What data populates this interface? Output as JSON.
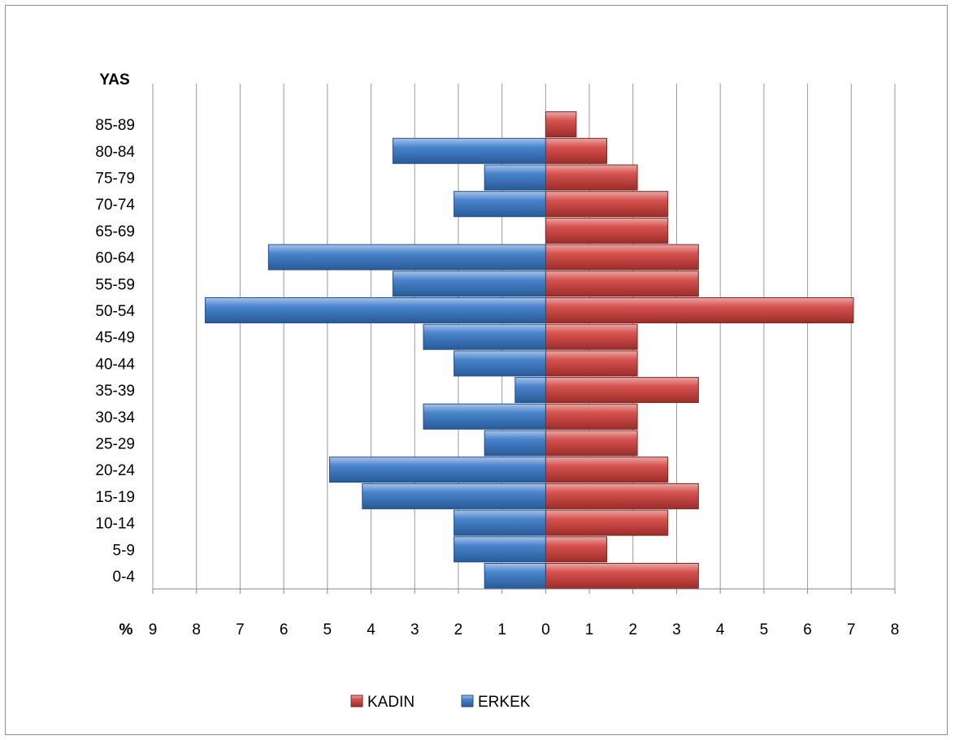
{
  "chart_data": {
    "type": "bar",
    "orientation": "horizontal",
    "subtype": "population-pyramid",
    "y_axis_title": "YAS",
    "x_axis_title": "%",
    "categories": [
      "0-4",
      "5-9",
      "10-14",
      "15-19",
      "20-24",
      "25-29",
      "30-34",
      "35-39",
      "40-44",
      "45-49",
      "50-54",
      "55-59",
      "60-64",
      "65-69",
      "70-74",
      "75-79",
      "80-84",
      "85-89"
    ],
    "series": [
      {
        "name": "KADIN",
        "color": "#c0504d",
        "side": "right",
        "values": [
          3.5,
          1.4,
          2.8,
          3.5,
          2.8,
          2.1,
          2.1,
          3.5,
          2.1,
          2.1,
          7.05,
          3.5,
          3.5,
          2.8,
          2.8,
          2.1,
          1.4,
          0.7
        ]
      },
      {
        "name": "ERKEK",
        "color": "#4f81bd",
        "side": "left",
        "values": [
          1.4,
          2.1,
          2.1,
          4.2,
          4.95,
          1.4,
          2.8,
          0.7,
          2.1,
          2.8,
          7.8,
          3.5,
          6.35,
          0,
          2.1,
          1.4,
          3.5,
          0
        ]
      }
    ],
    "xlim": [
      -9,
      8
    ],
    "x_tick_labels": [
      "9",
      "8",
      "7",
      "6",
      "5",
      "4",
      "3",
      "2",
      "1",
      "0",
      "1",
      "2",
      "3",
      "4",
      "5",
      "6",
      "7",
      "8"
    ],
    "grid": "vertical",
    "legend_position": "bottom"
  }
}
